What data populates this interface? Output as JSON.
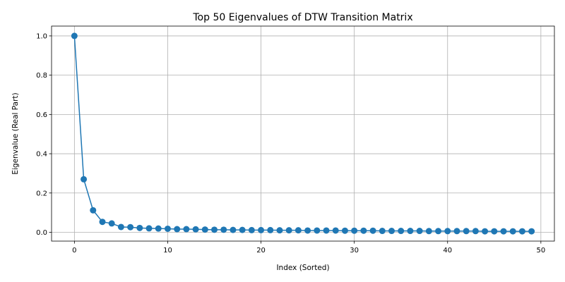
{
  "chart_data": {
    "type": "line",
    "title": "Top 50 Eigenvalues of DTW Transition Matrix",
    "xlabel": "Index (Sorted)",
    "ylabel": "Eigenvalue (Real Part)",
    "xlim": [
      -2.45,
      51.45
    ],
    "ylim": [
      -0.045,
      1.05
    ],
    "xticks": [
      0,
      10,
      20,
      30,
      40,
      50
    ],
    "yticks": [
      0.0,
      0.2,
      0.4,
      0.6,
      0.8,
      1.0
    ],
    "xtick_labels": [
      "0",
      "10",
      "20",
      "30",
      "40",
      "50"
    ],
    "ytick_labels": [
      "0.0",
      "0.2",
      "0.4",
      "0.6",
      "0.8",
      "1.0"
    ],
    "grid": true,
    "marker": "circle",
    "color": "#1f77b4",
    "x": [
      0,
      1,
      2,
      3,
      4,
      5,
      6,
      7,
      8,
      9,
      10,
      11,
      12,
      13,
      14,
      15,
      16,
      17,
      18,
      19,
      20,
      21,
      22,
      23,
      24,
      25,
      26,
      27,
      28,
      29,
      30,
      31,
      32,
      33,
      34,
      35,
      36,
      37,
      38,
      39,
      40,
      41,
      42,
      43,
      44,
      45,
      46,
      47,
      48,
      49
    ],
    "y": [
      1.0,
      0.27,
      0.112,
      0.053,
      0.045,
      0.027,
      0.026,
      0.022,
      0.02,
      0.019,
      0.018,
      0.016,
      0.016,
      0.015,
      0.014,
      0.013,
      0.013,
      0.012,
      0.012,
      0.011,
      0.011,
      0.011,
      0.01,
      0.01,
      0.01,
      0.009,
      0.009,
      0.009,
      0.009,
      0.008,
      0.008,
      0.008,
      0.008,
      0.007,
      0.007,
      0.007,
      0.007,
      0.007,
      0.006,
      0.006,
      0.006,
      0.006,
      0.006,
      0.006,
      0.005,
      0.005,
      0.005,
      0.005,
      0.005,
      0.005
    ]
  }
}
